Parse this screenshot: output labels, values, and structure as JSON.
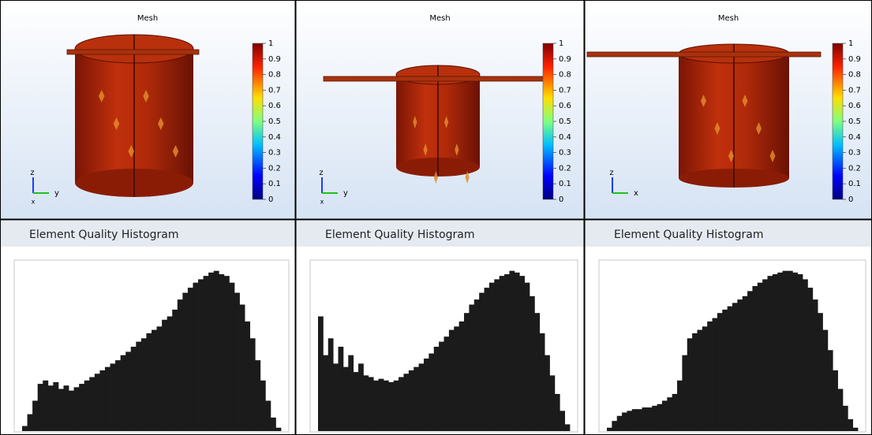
{
  "panels": [
    {
      "title": "Mesh",
      "colorbar": {
        "clim": [
          0,
          1
        ],
        "ticks": [
          1,
          0.9,
          0.8,
          0.7,
          0.6,
          0.5,
          0.4,
          0.3,
          0.2,
          0.1,
          0
        ]
      },
      "axes": {
        "vertical": "z",
        "horizontal": "y",
        "depth": "x"
      },
      "histogram": {
        "title": "Element Quality Histogram",
        "ylim": [
          0,
          100
        ],
        "counts": [
          3,
          10,
          18,
          28,
          30,
          27,
          29,
          25,
          27,
          24,
          26,
          28,
          30,
          32,
          34,
          36,
          38,
          40,
          42,
          45,
          47,
          50,
          53,
          55,
          58,
          60,
          62,
          66,
          68,
          72,
          78,
          82,
          85,
          88,
          90,
          92,
          94,
          95,
          93,
          92,
          88,
          82,
          75,
          65,
          55,
          42,
          30,
          18,
          8,
          2
        ]
      }
    },
    {
      "title": "Mesh",
      "colorbar": {
        "clim": [
          0,
          1
        ],
        "ticks": [
          1,
          0.9,
          0.8,
          0.7,
          0.6,
          0.5,
          0.4,
          0.3,
          0.2,
          0.1,
          0
        ]
      },
      "axes": {
        "vertical": "z",
        "horizontal": "y",
        "depth": "x"
      },
      "histogram": {
        "title": "Element Quality Histogram",
        "ylim": [
          0,
          100
        ],
        "counts": [
          68,
          45,
          55,
          40,
          50,
          38,
          45,
          35,
          40,
          33,
          32,
          30,
          31,
          30,
          29,
          30,
          32,
          34,
          36,
          38,
          40,
          43,
          46,
          50,
          53,
          56,
          60,
          62,
          65,
          70,
          75,
          78,
          82,
          85,
          88,
          90,
          92,
          93,
          95,
          94,
          92,
          88,
          80,
          70,
          58,
          45,
          33,
          22,
          12,
          4
        ]
      }
    },
    {
      "title": "Mesh",
      "colorbar": {
        "clim": [
          0,
          1
        ],
        "ticks": [
          1,
          0.9,
          0.8,
          0.7,
          0.6,
          0.5,
          0.4,
          0.3,
          0.2,
          0.1,
          0
        ]
      },
      "axes": {
        "vertical": "z",
        "horizontal": "x"
      },
      "histogram": {
        "title": "Element Quality Histogram",
        "ylim": [
          0,
          100
        ],
        "counts": [
          2,
          6,
          9,
          11,
          12,
          13,
          13,
          14,
          14,
          15,
          16,
          18,
          20,
          22,
          30,
          45,
          55,
          58,
          60,
          62,
          65,
          67,
          70,
          72,
          74,
          76,
          78,
          80,
          83,
          86,
          88,
          90,
          92,
          93,
          94,
          95,
          95,
          94,
          93,
          90,
          85,
          78,
          70,
          60,
          48,
          36,
          25,
          15,
          7,
          2
        ]
      }
    }
  ]
}
